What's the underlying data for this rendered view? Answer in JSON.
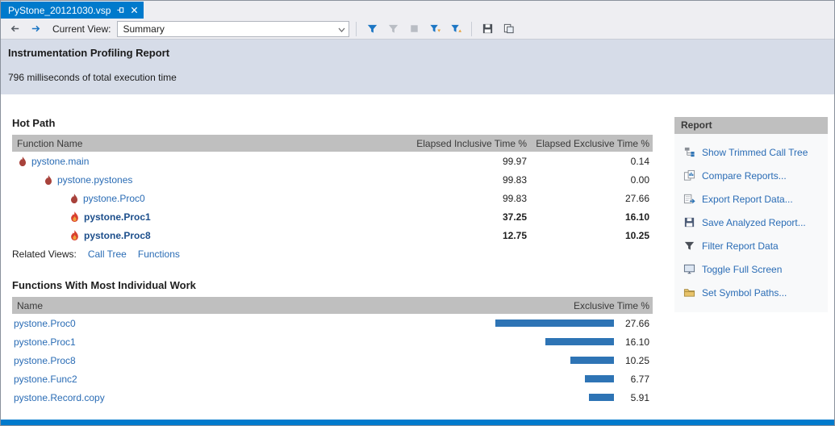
{
  "tab": {
    "title": "PyStone_20121030.vsp"
  },
  "toolbar": {
    "current_view_label": "Current View:",
    "view_selected": "Summary"
  },
  "header": {
    "title": "Instrumentation Profiling Report",
    "subtitle": "796 milliseconds of total execution time"
  },
  "hot_path": {
    "title": "Hot Path",
    "columns": [
      "Function Name",
      "Elapsed Inclusive Time %",
      "Elapsed Exclusive Time %"
    ],
    "rows": [
      {
        "name": "pystone.main",
        "inclusive": "99.97",
        "exclusive": "0.14"
      },
      {
        "name": "pystone.pystones",
        "inclusive": "99.83",
        "exclusive": "0.00"
      },
      {
        "name": "pystone.Proc0",
        "inclusive": "99.83",
        "exclusive": "27.66"
      },
      {
        "name": "pystone.Proc1",
        "inclusive": "37.25",
        "exclusive": "16.10"
      },
      {
        "name": "pystone.Proc8",
        "inclusive": "12.75",
        "exclusive": "10.25"
      }
    ],
    "related_views_label": "Related Views:",
    "related_links": [
      "Call Tree",
      "Functions"
    ]
  },
  "individual_work": {
    "title": "Functions With Most Individual Work",
    "columns": [
      "Name",
      "Exclusive Time %"
    ],
    "rows": [
      {
        "name": "pystone.Proc0",
        "value": "27.66"
      },
      {
        "name": "pystone.Proc1",
        "value": "16.10"
      },
      {
        "name": "pystone.Proc8",
        "value": "10.25"
      },
      {
        "name": "pystone.Func2",
        "value": "6.77"
      },
      {
        "name": "pystone.Record.copy",
        "value": "5.91"
      }
    ]
  },
  "report_panel": {
    "title": "Report",
    "items": [
      {
        "label": "Show Trimmed Call Tree",
        "icon": "call-tree-icon"
      },
      {
        "label": "Compare Reports...",
        "icon": "compare-reports-icon"
      },
      {
        "label": "Export Report Data...",
        "icon": "export-data-icon"
      },
      {
        "label": "Save Analyzed Report...",
        "icon": "save-report-icon"
      },
      {
        "label": "Filter Report Data",
        "icon": "filter-icon"
      },
      {
        "label": "Toggle Full Screen",
        "icon": "full-screen-icon"
      },
      {
        "label": "Set Symbol Paths...",
        "icon": "symbol-paths-icon"
      }
    ]
  },
  "colors": {
    "accent_blue": "#007ACC",
    "link_blue": "#2A6CB5",
    "table_header_gray": "#BFBFBF",
    "bar_blue": "#2E74B5",
    "flame_red": "#D8402F"
  }
}
